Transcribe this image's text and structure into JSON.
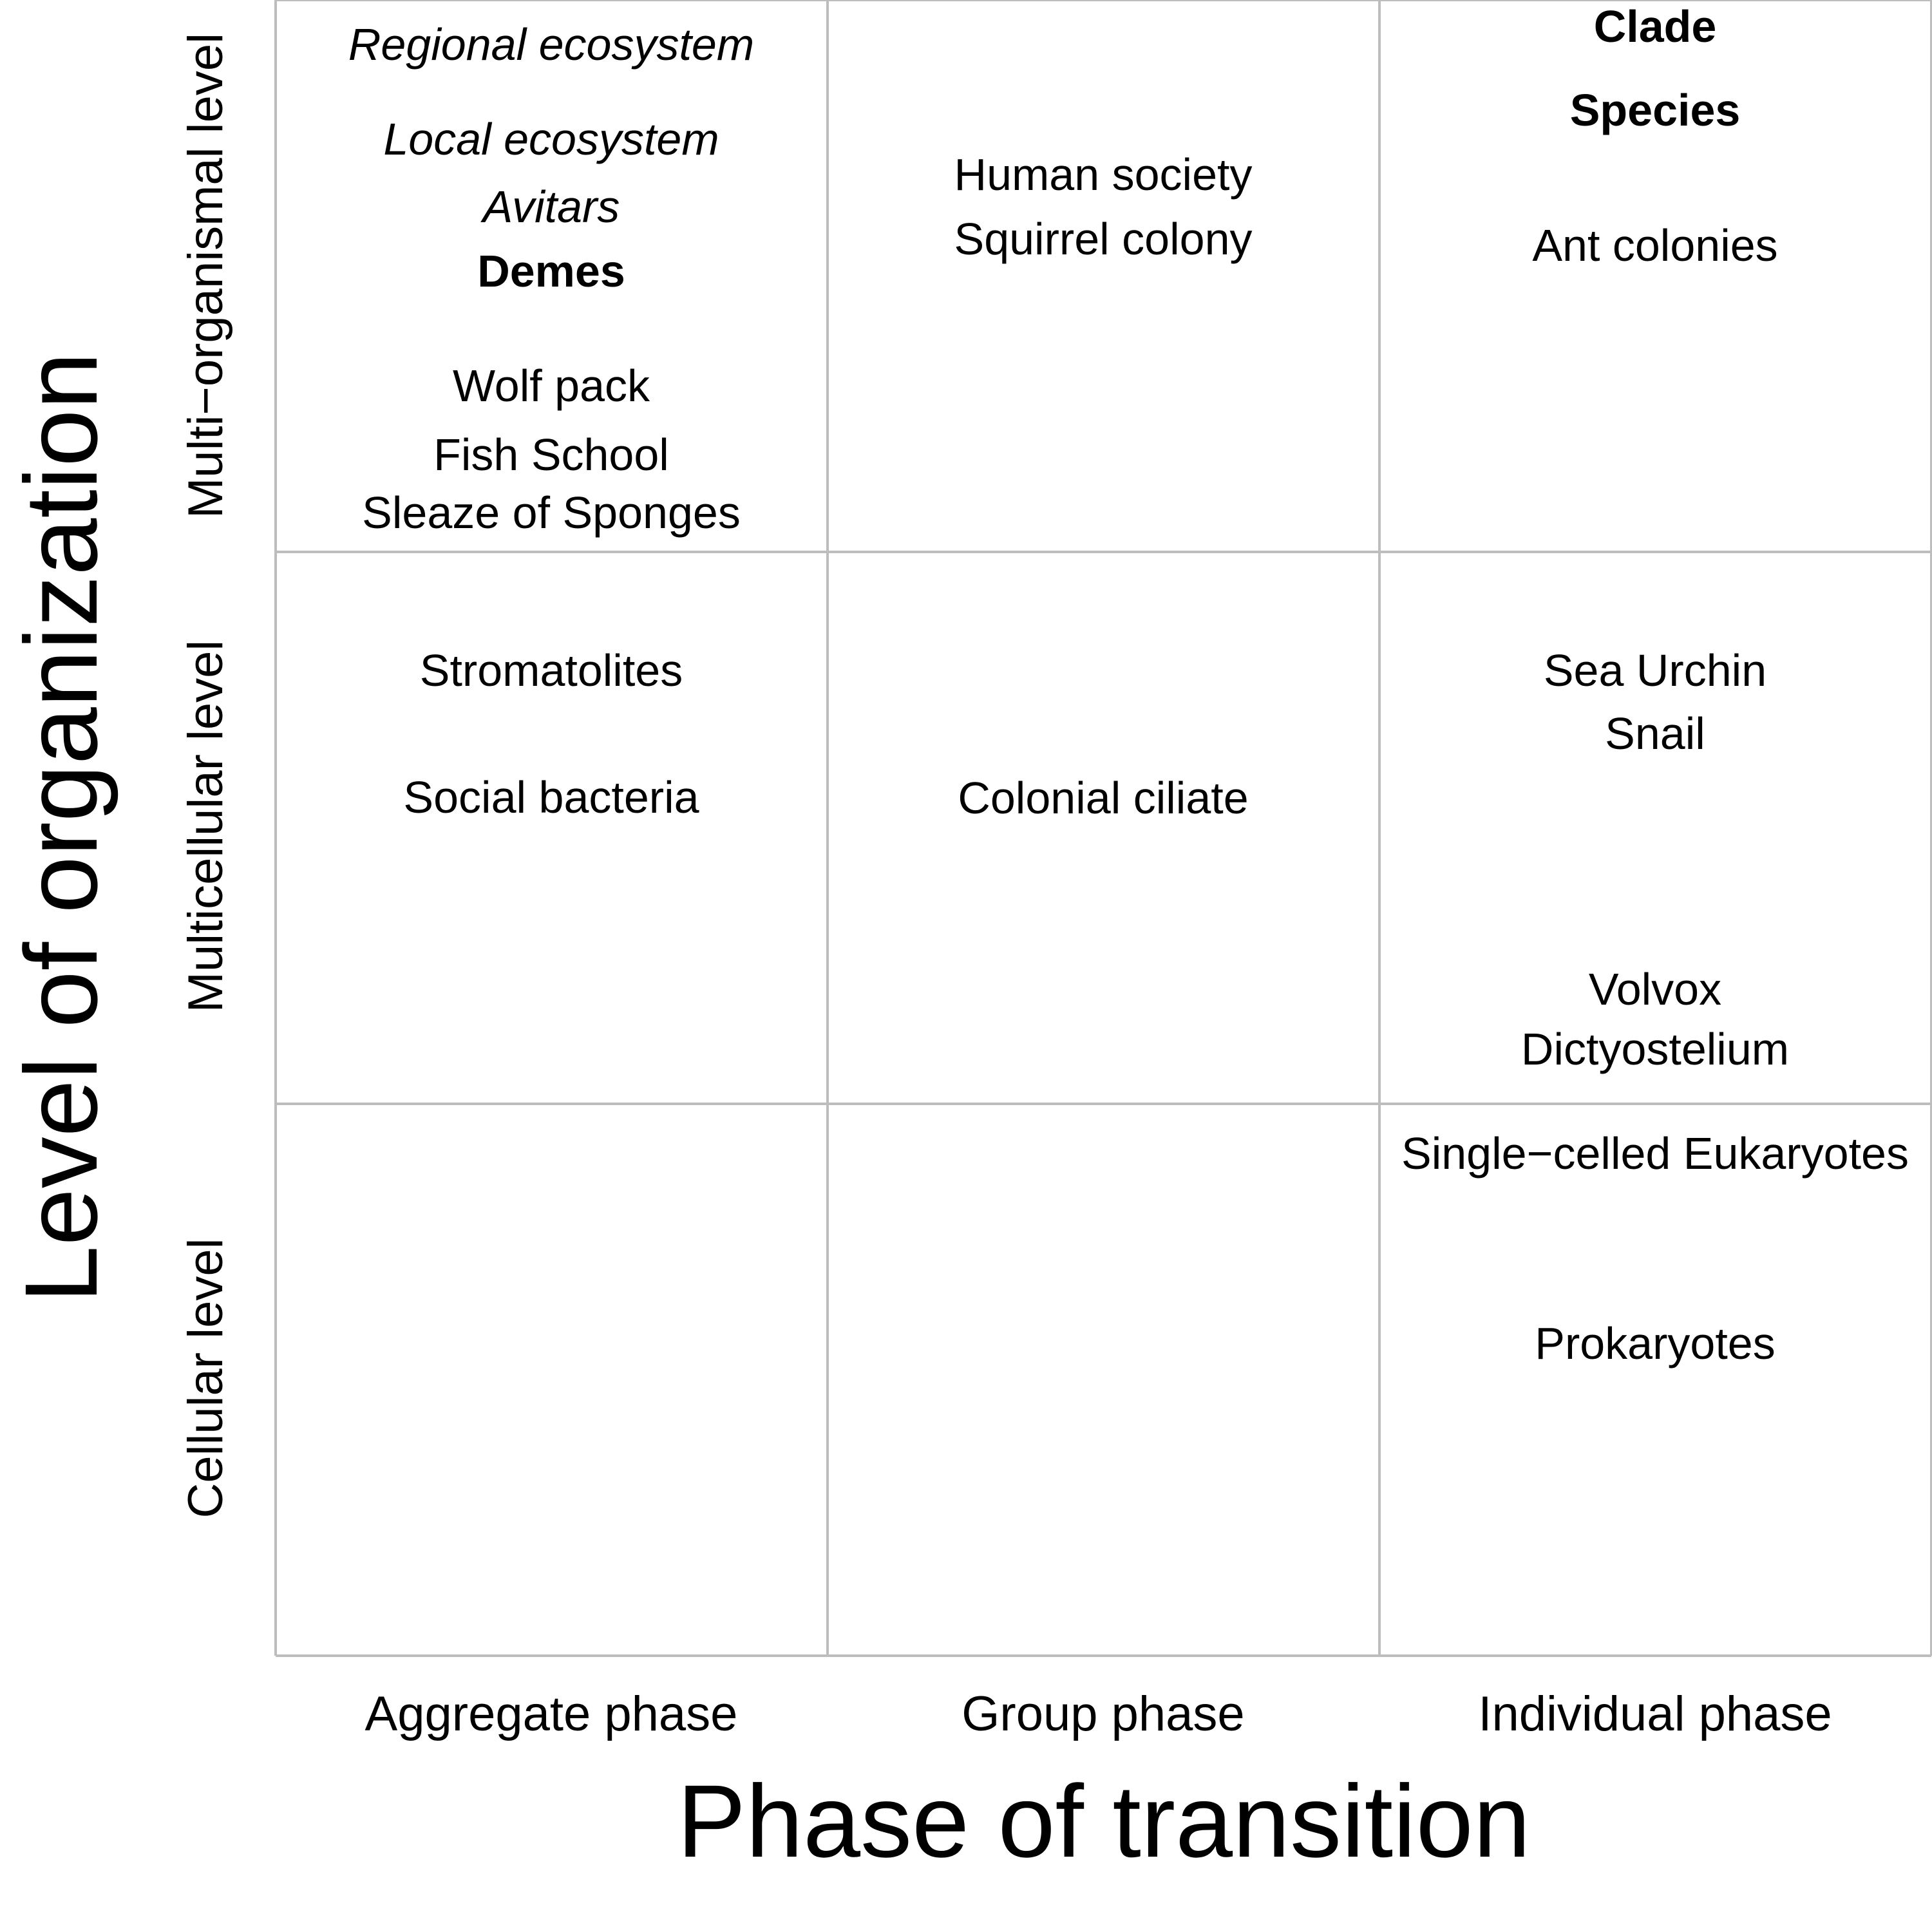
{
  "chart_data": {
    "type": "table",
    "xlabel": "Phase of transition",
    "ylabel": "Level of organization",
    "columns": [
      "Aggregate phase",
      "Group phase",
      "Individual phase"
    ],
    "rows": [
      "Multi−organismal level",
      "Multicellular level",
      "Cellular level"
    ],
    "cells": [
      {
        "row": 0,
        "col": 0,
        "items": [
          {
            "text": "Regional ecosystem",
            "style": "italic"
          },
          {
            "text": "Local ecosystem",
            "style": "italic"
          },
          {
            "text": "Avitars",
            "style": "italic"
          },
          {
            "text": "Demes",
            "style": "bold"
          },
          {
            "text": "Wolf pack",
            "style": "normal"
          },
          {
            "text": "Fish School",
            "style": "normal"
          },
          {
            "text": "Sleaze of Sponges",
            "style": "normal"
          }
        ]
      },
      {
        "row": 0,
        "col": 1,
        "items": [
          {
            "text": "Human society",
            "style": "normal"
          },
          {
            "text": "Squirrel colony",
            "style": "normal"
          }
        ]
      },
      {
        "row": 0,
        "col": 2,
        "items": [
          {
            "text": "Clade",
            "style": "bold"
          },
          {
            "text": "Species",
            "style": "bold"
          },
          {
            "text": "Ant colonies",
            "style": "normal"
          }
        ]
      },
      {
        "row": 1,
        "col": 0,
        "items": [
          {
            "text": "Stromatolites",
            "style": "normal"
          },
          {
            "text": "Social bacteria",
            "style": "normal"
          }
        ]
      },
      {
        "row": 1,
        "col": 1,
        "items": [
          {
            "text": "Colonial ciliate",
            "style": "normal"
          }
        ]
      },
      {
        "row": 1,
        "col": 2,
        "items": [
          {
            "text": "Sea Urchin",
            "style": "normal"
          },
          {
            "text": "Snail",
            "style": "normal"
          },
          {
            "text": "Volvox",
            "style": "normal"
          },
          {
            "text": "Dictyostelium",
            "style": "normal"
          }
        ]
      },
      {
        "row": 2,
        "col": 2,
        "items": [
          {
            "text": "Single−celled Eukaryotes",
            "style": "normal"
          },
          {
            "text": "Prokaryotes",
            "style": "normal"
          }
        ]
      }
    ]
  }
}
